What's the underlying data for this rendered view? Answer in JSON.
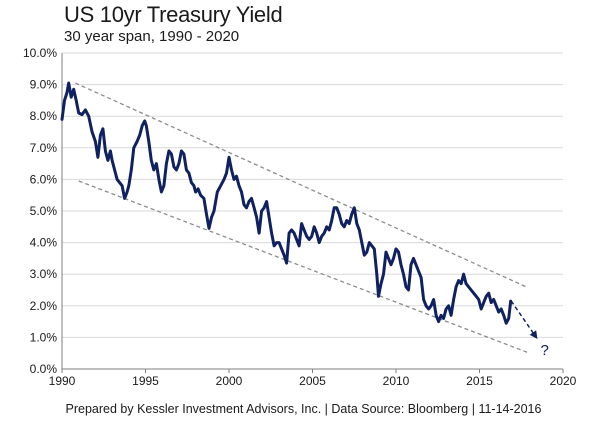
{
  "chart_data": {
    "type": "line",
    "title": "US 10yr Treasury Yield",
    "subtitle": "30 year span, 1990 - 2020",
    "footer": "Prepared by Kessler Investment Advisors, Inc. | Data Source: Bloomberg | 11-14-2016",
    "xlabel": "",
    "ylabel": "",
    "xlim": [
      1990,
      2020
    ],
    "ylim": [
      0,
      10
    ],
    "x_ticks": [
      1990,
      1995,
      2000,
      2005,
      2010,
      2015,
      2020
    ],
    "x_tick_labels": [
      "1990",
      "1995",
      "2000",
      "2005",
      "2010",
      "2015",
      "2020"
    ],
    "y_ticks": [
      0,
      1,
      2,
      3,
      4,
      5,
      6,
      7,
      8,
      9,
      10
    ],
    "y_tick_labels": [
      "0.0%",
      "1.0%",
      "2.0%",
      "3.0%",
      "4.0%",
      "5.0%",
      "6.0%",
      "7.0%",
      "8.0%",
      "9.0%",
      "10.0%"
    ],
    "grid": true,
    "line_color": "#0f2160",
    "trend_color": "#8c8c8c",
    "series": [
      {
        "points": [
          [
            1990.0,
            7.9
          ],
          [
            1990.15,
            8.5
          ],
          [
            1990.3,
            8.75
          ],
          [
            1990.4,
            9.05
          ],
          [
            1990.55,
            8.6
          ],
          [
            1990.7,
            8.85
          ],
          [
            1990.85,
            8.5
          ],
          [
            1991.0,
            8.1
          ],
          [
            1991.2,
            8.05
          ],
          [
            1991.4,
            8.2
          ],
          [
            1991.6,
            8.0
          ],
          [
            1991.8,
            7.5
          ],
          [
            1992.0,
            7.2
          ],
          [
            1992.15,
            6.7
          ],
          [
            1992.3,
            7.4
          ],
          [
            1992.45,
            7.6
          ],
          [
            1992.6,
            6.9
          ],
          [
            1992.75,
            6.6
          ],
          [
            1992.9,
            6.9
          ],
          [
            1993.0,
            6.6
          ],
          [
            1993.15,
            6.3
          ],
          [
            1993.3,
            6.0
          ],
          [
            1993.45,
            5.9
          ],
          [
            1993.6,
            5.8
          ],
          [
            1993.75,
            5.4
          ],
          [
            1993.9,
            5.6
          ],
          [
            1994.0,
            5.8
          ],
          [
            1994.15,
            6.3
          ],
          [
            1994.3,
            7.0
          ],
          [
            1994.5,
            7.2
          ],
          [
            1994.65,
            7.4
          ],
          [
            1994.8,
            7.7
          ],
          [
            1994.95,
            7.85
          ],
          [
            1995.05,
            7.7
          ],
          [
            1995.2,
            7.2
          ],
          [
            1995.35,
            6.6
          ],
          [
            1995.5,
            6.3
          ],
          [
            1995.65,
            6.5
          ],
          [
            1995.8,
            6.0
          ],
          [
            1995.95,
            5.6
          ],
          [
            1996.1,
            5.8
          ],
          [
            1996.25,
            6.5
          ],
          [
            1996.4,
            6.9
          ],
          [
            1996.55,
            6.8
          ],
          [
            1996.7,
            6.4
          ],
          [
            1996.85,
            6.3
          ],
          [
            1997.0,
            6.5
          ],
          [
            1997.15,
            6.9
          ],
          [
            1997.3,
            6.8
          ],
          [
            1997.45,
            6.3
          ],
          [
            1997.6,
            6.2
          ],
          [
            1997.75,
            5.9
          ],
          [
            1997.9,
            5.8
          ],
          [
            1998.0,
            5.6
          ],
          [
            1998.15,
            5.7
          ],
          [
            1998.3,
            5.5
          ],
          [
            1998.5,
            5.4
          ],
          [
            1998.65,
            4.9
          ],
          [
            1998.8,
            4.45
          ],
          [
            1998.95,
            4.8
          ],
          [
            1999.1,
            5.0
          ],
          [
            1999.3,
            5.6
          ],
          [
            1999.5,
            5.8
          ],
          [
            1999.7,
            6.0
          ],
          [
            1999.85,
            6.2
          ],
          [
            2000.0,
            6.7
          ],
          [
            2000.15,
            6.3
          ],
          [
            2000.3,
            6.0
          ],
          [
            2000.45,
            6.1
          ],
          [
            2000.6,
            5.8
          ],
          [
            2000.75,
            5.6
          ],
          [
            2000.9,
            5.2
          ],
          [
            2001.05,
            5.1
          ],
          [
            2001.2,
            5.3
          ],
          [
            2001.35,
            5.4
          ],
          [
            2001.5,
            5.1
          ],
          [
            2001.65,
            4.8
          ],
          [
            2001.8,
            4.3
          ],
          [
            2001.95,
            5.0
          ],
          [
            2002.1,
            5.1
          ],
          [
            2002.25,
            5.3
          ],
          [
            2002.4,
            4.8
          ],
          [
            2002.55,
            4.3
          ],
          [
            2002.7,
            3.9
          ],
          [
            2002.85,
            4.0
          ],
          [
            2003.0,
            4.0
          ],
          [
            2003.15,
            3.8
          ],
          [
            2003.3,
            3.6
          ],
          [
            2003.45,
            3.35
          ],
          [
            2003.6,
            4.3
          ],
          [
            2003.75,
            4.4
          ],
          [
            2003.9,
            4.3
          ],
          [
            2004.05,
            4.1
          ],
          [
            2004.2,
            3.9
          ],
          [
            2004.35,
            4.6
          ],
          [
            2004.5,
            4.4
          ],
          [
            2004.65,
            4.2
          ],
          [
            2004.8,
            4.1
          ],
          [
            2004.95,
            4.2
          ],
          [
            2005.1,
            4.5
          ],
          [
            2005.25,
            4.3
          ],
          [
            2005.4,
            4.0
          ],
          [
            2005.55,
            4.2
          ],
          [
            2005.7,
            4.3
          ],
          [
            2005.85,
            4.5
          ],
          [
            2006.0,
            4.4
          ],
          [
            2006.15,
            4.7
          ],
          [
            2006.3,
            5.1
          ],
          [
            2006.45,
            5.1
          ],
          [
            2006.6,
            4.9
          ],
          [
            2006.75,
            4.6
          ],
          [
            2006.9,
            4.5
          ],
          [
            2007.05,
            4.7
          ],
          [
            2007.2,
            4.6
          ],
          [
            2007.35,
            4.9
          ],
          [
            2007.5,
            5.1
          ],
          [
            2007.65,
            4.6
          ],
          [
            2007.8,
            4.4
          ],
          [
            2007.95,
            4.0
          ],
          [
            2008.1,
            3.6
          ],
          [
            2008.25,
            3.7
          ],
          [
            2008.4,
            4.0
          ],
          [
            2008.55,
            3.9
          ],
          [
            2008.7,
            3.8
          ],
          [
            2008.85,
            3.0
          ],
          [
            2008.95,
            2.3
          ],
          [
            2009.1,
            2.7
          ],
          [
            2009.25,
            3.0
          ],
          [
            2009.4,
            3.7
          ],
          [
            2009.55,
            3.5
          ],
          [
            2009.7,
            3.3
          ],
          [
            2009.85,
            3.5
          ],
          [
            2010.0,
            3.8
          ],
          [
            2010.15,
            3.7
          ],
          [
            2010.3,
            3.3
          ],
          [
            2010.45,
            3.0
          ],
          [
            2010.6,
            2.6
          ],
          [
            2010.75,
            2.5
          ],
          [
            2010.9,
            3.3
          ],
          [
            2011.05,
            3.5
          ],
          [
            2011.2,
            3.3
          ],
          [
            2011.35,
            3.1
          ],
          [
            2011.5,
            2.9
          ],
          [
            2011.65,
            2.2
          ],
          [
            2011.8,
            2.0
          ],
          [
            2011.95,
            1.9
          ],
          [
            2012.1,
            2.0
          ],
          [
            2012.25,
            2.2
          ],
          [
            2012.4,
            1.7
          ],
          [
            2012.55,
            1.5
          ],
          [
            2012.7,
            1.7
          ],
          [
            2012.85,
            1.6
          ],
          [
            2013.0,
            1.9
          ],
          [
            2013.15,
            2.0
          ],
          [
            2013.3,
            1.7
          ],
          [
            2013.45,
            2.2
          ],
          [
            2013.6,
            2.6
          ],
          [
            2013.75,
            2.8
          ],
          [
            2013.9,
            2.7
          ],
          [
            2014.05,
            3.0
          ],
          [
            2014.2,
            2.7
          ],
          [
            2014.35,
            2.6
          ],
          [
            2014.5,
            2.5
          ],
          [
            2014.65,
            2.4
          ],
          [
            2014.8,
            2.3
          ],
          [
            2014.95,
            2.2
          ],
          [
            2015.1,
            1.9
          ],
          [
            2015.25,
            2.1
          ],
          [
            2015.4,
            2.3
          ],
          [
            2015.55,
            2.4
          ],
          [
            2015.7,
            2.1
          ],
          [
            2015.85,
            2.2
          ],
          [
            2016.0,
            2.0
          ],
          [
            2016.15,
            1.8
          ],
          [
            2016.3,
            1.9
          ],
          [
            2016.45,
            1.7
          ],
          [
            2016.6,
            1.45
          ],
          [
            2016.75,
            1.6
          ],
          [
            2016.87,
            2.15
          ]
        ]
      }
    ],
    "trend_lines": [
      {
        "style": "dashed",
        "points": [
          [
            1990.8,
            9.05
          ],
          [
            2017.8,
            2.6
          ]
        ]
      },
      {
        "style": "dashed",
        "points": [
          [
            1991.0,
            5.95
          ],
          [
            2018.0,
            0.5
          ]
        ]
      }
    ],
    "projection": {
      "style": "dashed-arrow",
      "points": [
        [
          2016.9,
          2.15
        ],
        [
          2018.4,
          1.0
        ]
      ]
    },
    "annotations": [
      {
        "text": "?",
        "x": 2018.9,
        "y": 0.6
      }
    ]
  }
}
